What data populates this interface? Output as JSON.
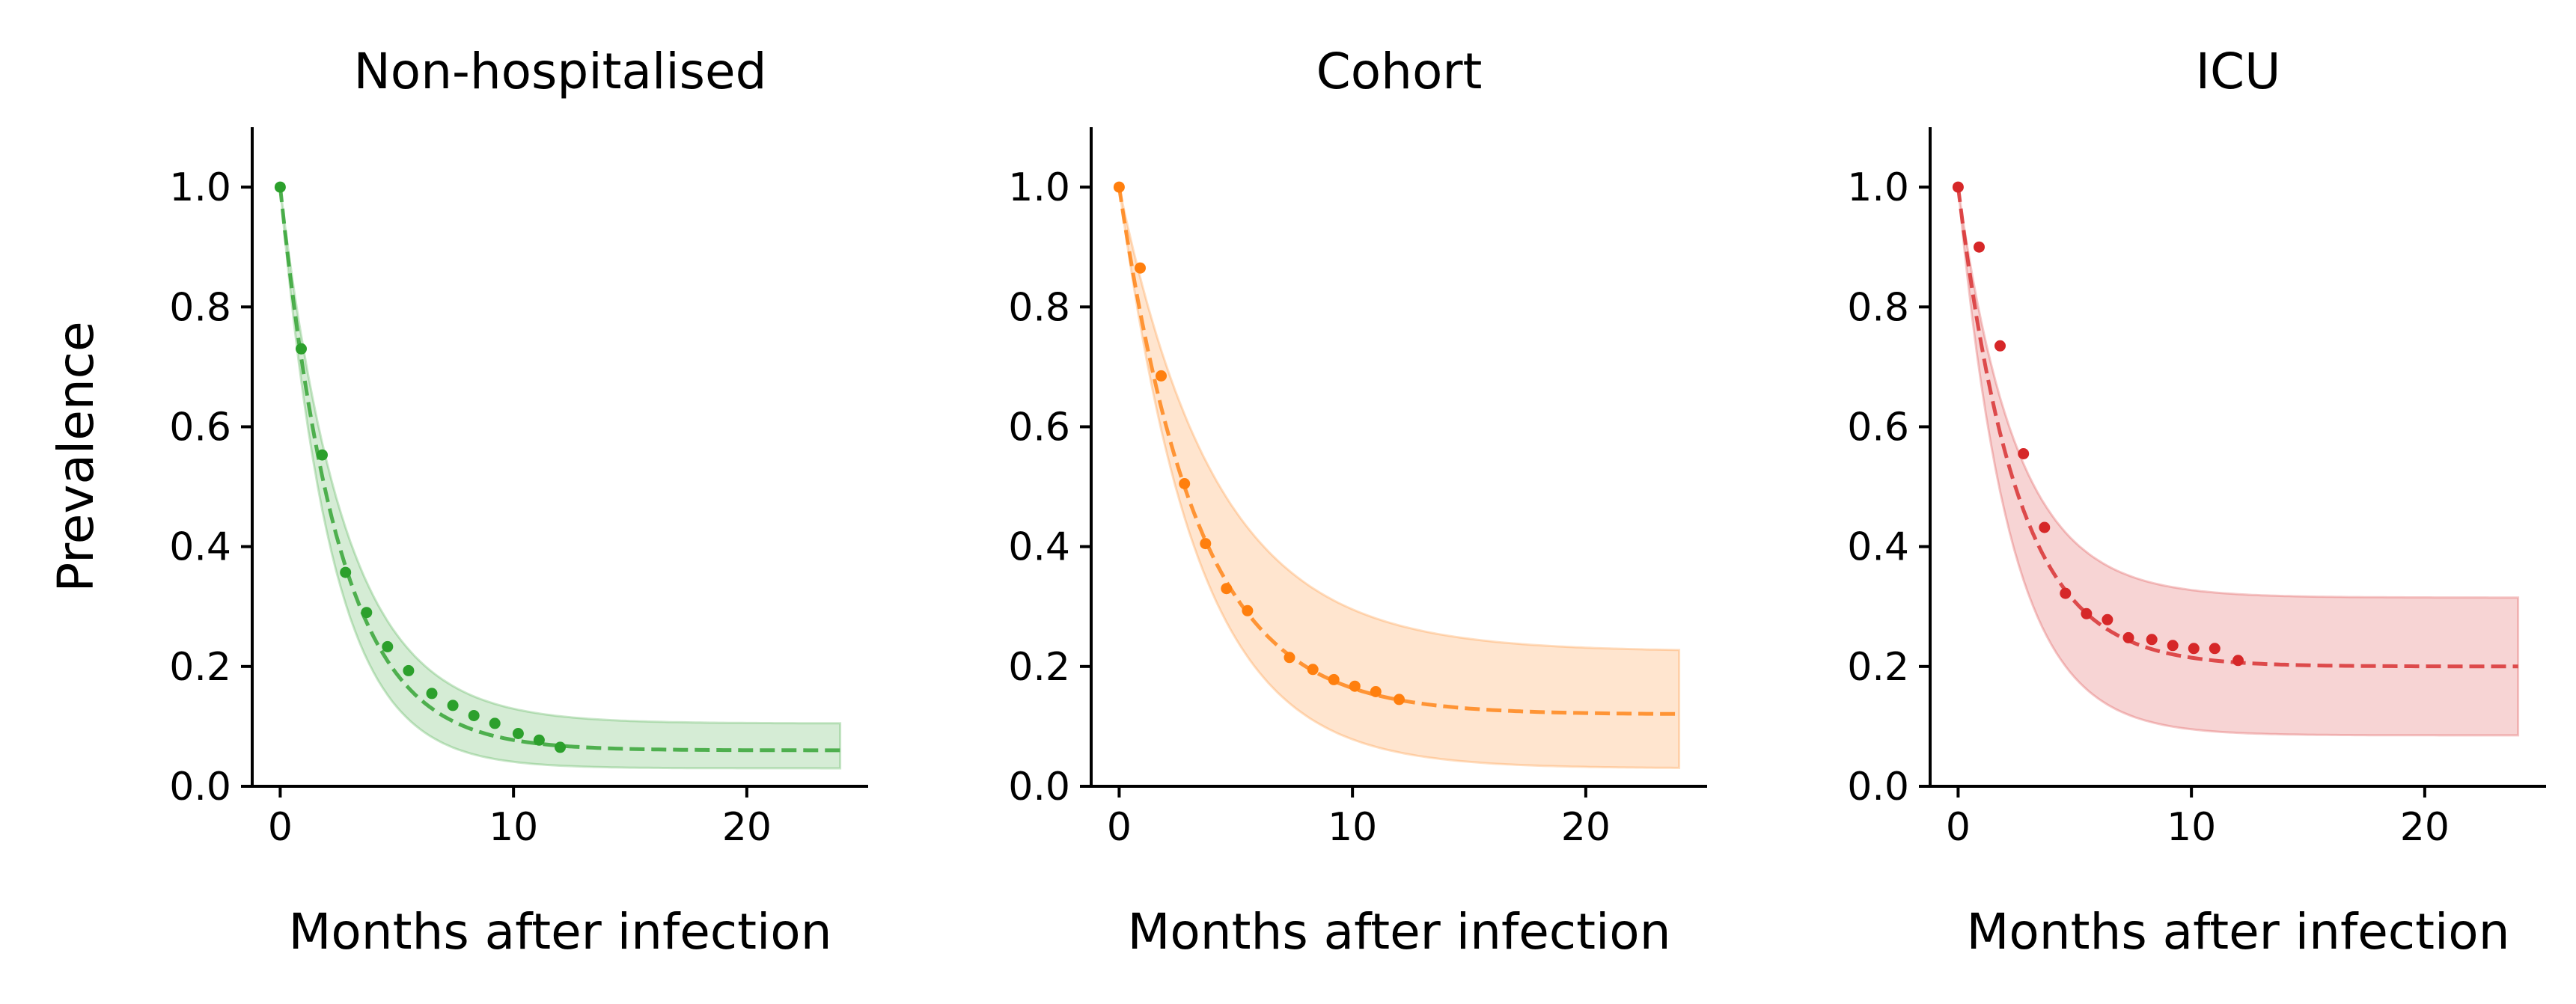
{
  "chart_data": [
    {
      "type": "line",
      "title": "Non-hospitalised",
      "xlabel": "Months after infection",
      "ylabel": "Prevalence",
      "xlim": [
        -1.2,
        25.2
      ],
      "ylim": [
        0.0,
        1.1
      ],
      "xticks": [
        0,
        10,
        20
      ],
      "yticks": [
        "0.0",
        "0.2",
        "0.4",
        "0.6",
        "0.8",
        "1.0"
      ],
      "grid": false,
      "color": "#2ca02c",
      "points": {
        "x": [
          0,
          0.9,
          1.8,
          2.8,
          3.7,
          4.6,
          5.5,
          6.5,
          7.4,
          8.3,
          9.2,
          10.2,
          11.1,
          12
        ],
        "y": [
          1.0,
          0.73,
          0.553,
          0.357,
          0.29,
          0.233,
          0.193,
          0.155,
          0.135,
          0.118,
          0.105,
          0.088,
          0.077,
          0.065
        ]
      },
      "fit": {
        "plateau": 0.06,
        "decay_rate": 0.4,
        "x_end": 24
      },
      "band": {
        "lower_plateau": 0.03,
        "upper_plateau": 0.105,
        "lower_rate": 0.45,
        "upper_rate": 0.36
      }
    },
    {
      "type": "line",
      "title": "Cohort",
      "xlabel": "Months after infection",
      "ylabel": "",
      "xlim": [
        -1.2,
        25.2
      ],
      "ylim": [
        0.0,
        1.1
      ],
      "xticks": [
        0,
        10,
        20
      ],
      "yticks": [
        "0.0",
        "0.2",
        "0.4",
        "0.6",
        "0.8",
        "1.0"
      ],
      "grid": false,
      "color": "#ff7f0e",
      "points": {
        "x": [
          0,
          0.9,
          1.8,
          2.8,
          3.7,
          4.6,
          5.5,
          7.3,
          8.3,
          9.2,
          10.1,
          11.0,
          12
        ],
        "y": [
          1.0,
          0.865,
          0.685,
          0.505,
          0.405,
          0.33,
          0.293,
          0.215,
          0.195,
          0.178,
          0.167,
          0.158,
          0.145
        ]
      },
      "fit": {
        "plateau": 0.12,
        "decay_rate": 0.3,
        "x_end": 24
      },
      "band": {
        "lower_plateau": 0.03,
        "upper_plateau": 0.225,
        "lower_rate": 0.3,
        "upper_rate": 0.24
      }
    },
    {
      "type": "line",
      "title": "ICU",
      "xlabel": "Months after infection",
      "ylabel": "",
      "xlim": [
        -1.2,
        25.2
      ],
      "ylim": [
        0.0,
        1.1
      ],
      "xticks": [
        0,
        10,
        20
      ],
      "yticks": [
        "0.0",
        "0.2",
        "0.4",
        "0.6",
        "0.8",
        "1.0"
      ],
      "grid": false,
      "color": "#d62728",
      "points": {
        "x": [
          0,
          0.9,
          1.8,
          2.8,
          3.7,
          4.6,
          5.5,
          6.4,
          7.3,
          8.3,
          9.2,
          10.1,
          11.0,
          12
        ],
        "y": [
          1.0,
          0.9,
          0.735,
          0.555,
          0.432,
          0.322,
          0.288,
          0.278,
          0.248,
          0.245,
          0.235,
          0.23,
          0.23,
          0.21
        ]
      },
      "fit": {
        "plateau": 0.2,
        "decay_rate": 0.4,
        "x_end": 24
      },
      "band": {
        "lower_plateau": 0.085,
        "upper_plateau": 0.315,
        "lower_rate": 0.45,
        "upper_rate": 0.4
      }
    }
  ]
}
